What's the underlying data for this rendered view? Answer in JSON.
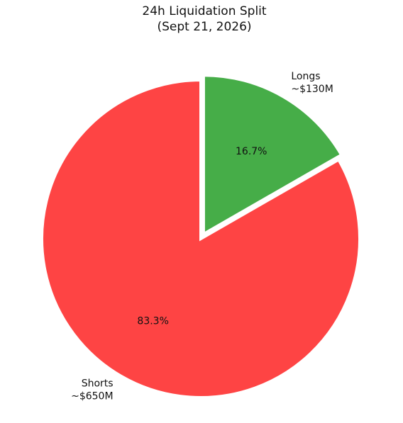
{
  "chart_data": {
    "type": "pie",
    "title": "24h Liquidation Split",
    "subtitle": "(Sept 21, 2026)",
    "categories": [
      "Longs",
      "Shorts"
    ],
    "amount_labels": [
      "~$130M",
      "~$650M"
    ],
    "values": [
      16.7,
      83.3
    ],
    "value_labels": [
      "16.7%",
      "83.3%"
    ],
    "colors": [
      "#46ad48",
      "#fe4444"
    ]
  }
}
